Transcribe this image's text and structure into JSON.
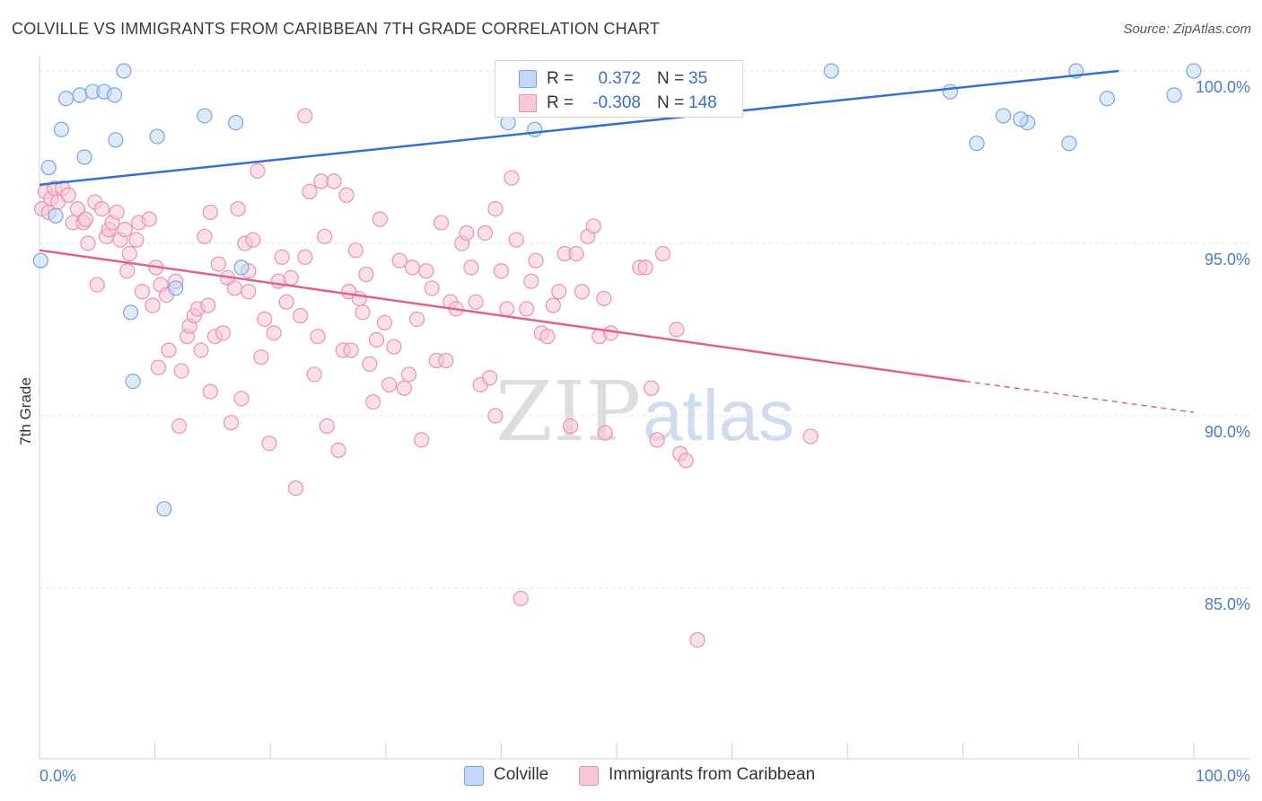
{
  "title": "COLVILLE VS IMMIGRANTS FROM CARIBBEAN 7TH GRADE CORRELATION CHART",
  "source": "Source: ZipAtlas.com",
  "watermark": {
    "zip": "ZIP",
    "atlas": "atlas"
  },
  "colors": {
    "blue_fill": "#c3d8f5",
    "blue_stroke": "#7aa4df",
    "blue_line": "#3271cf",
    "pink_fill": "#f8c7d7",
    "pink_stroke": "#e991b0",
    "pink_line": "#e0608e",
    "tick_text": "#4a7bc8"
  },
  "legend": {
    "rows": [
      {
        "r_label": "R =",
        "r_value": "0.372",
        "n_label": "N =",
        "n_value": "35"
      },
      {
        "r_label": "R =",
        "r_value": "-0.308",
        "n_label": "N =",
        "n_value": "148"
      }
    ],
    "bottom": [
      "Colville",
      "Immigrants from Caribbean"
    ]
  },
  "chart_data": {
    "type": "scatter",
    "title": "COLVILLE VS IMMIGRANTS FROM CARIBBEAN 7TH GRADE CORRELATION CHART",
    "xlabel": "",
    "ylabel": "7th Grade",
    "xlim": [
      0,
      100
    ],
    "ylim": [
      80.5,
      101
    ],
    "x_tick_labels": [
      "0.0%",
      "100.0%"
    ],
    "y_ticks": [
      85,
      90,
      95,
      100
    ],
    "y_tick_labels": [
      "85.0%",
      "90.0%",
      "95.0%",
      "100.0%"
    ],
    "grid": true,
    "legend_position": "top-center",
    "series": [
      {
        "name": "Colville",
        "points": [
          [
            0.1,
            94.5
          ],
          [
            0.8,
            97.2
          ],
          [
            1.4,
            95.8
          ],
          [
            1.9,
            98.3
          ],
          [
            2.3,
            99.2
          ],
          [
            3.5,
            99.3
          ],
          [
            3.9,
            97.5
          ],
          [
            4.6,
            99.4
          ],
          [
            5.6,
            99.4
          ],
          [
            6.5,
            99.3
          ],
          [
            6.6,
            98.0
          ],
          [
            7.3,
            100.0
          ],
          [
            7.9,
            93.0
          ],
          [
            8.1,
            91.0
          ],
          [
            10.2,
            98.1
          ],
          [
            10.8,
            87.3
          ],
          [
            11.8,
            93.7
          ],
          [
            14.3,
            98.7
          ],
          [
            17.0,
            98.5
          ],
          [
            17.5,
            94.3
          ],
          [
            40.6,
            98.5
          ],
          [
            42.9,
            98.3
          ],
          [
            55.0,
            100.0
          ],
          [
            56.0,
            100.0
          ],
          [
            68.6,
            100.0
          ],
          [
            78.9,
            99.4
          ],
          [
            81.2,
            97.9
          ],
          [
            85.6,
            98.5
          ],
          [
            89.8,
            100.0
          ],
          [
            100.0,
            100.0
          ],
          [
            98.3,
            99.3
          ],
          [
            92.5,
            99.2
          ],
          [
            83.5,
            98.7
          ],
          [
            85.0,
            98.6
          ],
          [
            89.2,
            97.9
          ]
        ]
      },
      {
        "name": "Immigrants from Caribbean",
        "points": [
          [
            0.2,
            96.0
          ],
          [
            0.5,
            96.5
          ],
          [
            0.8,
            95.9
          ],
          [
            1.0,
            96.3
          ],
          [
            1.3,
            96.6
          ],
          [
            1.6,
            96.2
          ],
          [
            2.0,
            96.6
          ],
          [
            2.5,
            96.4
          ],
          [
            2.9,
            95.6
          ],
          [
            3.3,
            96.0
          ],
          [
            3.8,
            95.6
          ],
          [
            4.0,
            95.7
          ],
          [
            4.2,
            95.0
          ],
          [
            4.8,
            96.2
          ],
          [
            5.0,
            93.8
          ],
          [
            5.4,
            96.0
          ],
          [
            5.8,
            95.2
          ],
          [
            6.0,
            95.4
          ],
          [
            6.3,
            95.6
          ],
          [
            6.7,
            95.9
          ],
          [
            7.0,
            95.1
          ],
          [
            7.4,
            95.4
          ],
          [
            7.8,
            94.7
          ],
          [
            7.6,
            94.2
          ],
          [
            8.4,
            95.1
          ],
          [
            8.6,
            95.6
          ],
          [
            8.9,
            93.6
          ],
          [
            9.5,
            95.7
          ],
          [
            9.8,
            93.2
          ],
          [
            10.1,
            94.3
          ],
          [
            10.3,
            91.4
          ],
          [
            10.5,
            93.8
          ],
          [
            11.0,
            93.5
          ],
          [
            11.2,
            91.9
          ],
          [
            11.8,
            93.9
          ],
          [
            12.1,
            89.7
          ],
          [
            12.3,
            91.3
          ],
          [
            12.8,
            92.3
          ],
          [
            13.0,
            92.6
          ],
          [
            13.4,
            92.9
          ],
          [
            13.7,
            93.1
          ],
          [
            14.0,
            91.9
          ],
          [
            14.3,
            95.2
          ],
          [
            14.6,
            93.2
          ],
          [
            14.8,
            90.7
          ],
          [
            15.2,
            92.3
          ],
          [
            15.5,
            94.4
          ],
          [
            15.9,
            92.4
          ],
          [
            16.3,
            94.0
          ],
          [
            16.6,
            89.8
          ],
          [
            16.9,
            93.7
          ],
          [
            17.2,
            96.0
          ],
          [
            17.5,
            90.5
          ],
          [
            17.8,
            95.0
          ],
          [
            18.1,
            94.2
          ],
          [
            18.5,
            95.1
          ],
          [
            18.9,
            97.1
          ],
          [
            19.2,
            91.7
          ],
          [
            19.5,
            92.8
          ],
          [
            19.9,
            89.2
          ],
          [
            20.3,
            92.4
          ],
          [
            20.7,
            93.9
          ],
          [
            21.0,
            94.6
          ],
          [
            21.4,
            93.3
          ],
          [
            21.8,
            94.0
          ],
          [
            22.2,
            87.9
          ],
          [
            22.6,
            92.9
          ],
          [
            23.0,
            94.6
          ],
          [
            23.4,
            96.5
          ],
          [
            23.8,
            91.2
          ],
          [
            24.1,
            92.3
          ],
          [
            24.4,
            96.8
          ],
          [
            24.7,
            95.2
          ],
          [
            24.9,
            89.7
          ],
          [
            25.5,
            96.8
          ],
          [
            25.9,
            89.0
          ],
          [
            26.3,
            91.9
          ],
          [
            26.6,
            96.4
          ],
          [
            26.8,
            93.6
          ],
          [
            27.0,
            91.9
          ],
          [
            27.4,
            94.8
          ],
          [
            27.7,
            93.4
          ],
          [
            28.0,
            93.0
          ],
          [
            28.3,
            94.1
          ],
          [
            28.6,
            91.5
          ],
          [
            28.9,
            90.4
          ],
          [
            29.2,
            92.2
          ],
          [
            29.5,
            95.7
          ],
          [
            29.9,
            92.7
          ],
          [
            30.3,
            90.9
          ],
          [
            30.7,
            92.0
          ],
          [
            31.2,
            94.5
          ],
          [
            31.6,
            90.8
          ],
          [
            32.0,
            91.2
          ],
          [
            32.3,
            94.3
          ],
          [
            32.7,
            92.8
          ],
          [
            33.1,
            89.3
          ],
          [
            33.5,
            94.2
          ],
          [
            34.0,
            93.7
          ],
          [
            34.4,
            91.6
          ],
          [
            34.8,
            95.6
          ],
          [
            35.2,
            91.6
          ],
          [
            35.6,
            93.3
          ],
          [
            36.1,
            93.1
          ],
          [
            36.6,
            95.0
          ],
          [
            37.0,
            95.3
          ],
          [
            37.4,
            94.3
          ],
          [
            37.8,
            93.3
          ],
          [
            38.2,
            90.9
          ],
          [
            38.6,
            95.3
          ],
          [
            39.0,
            91.1
          ],
          [
            39.5,
            90.0
          ],
          [
            40.0,
            94.2
          ],
          [
            40.5,
            93.1
          ],
          [
            40.9,
            96.9
          ],
          [
            41.3,
            95.1
          ],
          [
            41.7,
            84.7
          ],
          [
            42.2,
            93.1
          ],
          [
            42.6,
            93.9
          ],
          [
            43.0,
            94.5
          ],
          [
            43.5,
            92.4
          ],
          [
            44.0,
            92.3
          ],
          [
            44.5,
            93.2
          ],
          [
            45.0,
            93.6
          ],
          [
            45.5,
            94.7
          ],
          [
            46.0,
            89.7
          ],
          [
            46.5,
            94.7
          ],
          [
            47.0,
            93.6
          ],
          [
            47.5,
            95.2
          ],
          [
            48.0,
            95.5
          ],
          [
            48.5,
            92.3
          ],
          [
            49.0,
            89.5
          ],
          [
            49.5,
            92.4
          ],
          [
            52.0,
            94.3
          ],
          [
            52.5,
            94.3
          ],
          [
            53.0,
            90.8
          ],
          [
            53.5,
            89.3
          ],
          [
            54.0,
            94.7
          ],
          [
            55.2,
            92.5
          ],
          [
            55.5,
            88.9
          ],
          [
            56.0,
            88.7
          ],
          [
            57.0,
            83.5
          ],
          [
            66.8,
            89.4
          ],
          [
            48.9,
            93.4
          ],
          [
            39.5,
            96.0
          ],
          [
            23.0,
            98.7
          ],
          [
            14.8,
            95.9
          ],
          [
            18.1,
            93.6
          ]
        ]
      }
    ],
    "trend_lines": [
      {
        "series": "Colville",
        "from": [
          0,
          96.7
        ],
        "to": [
          93.5,
          100.0
        ],
        "dashed_to": null
      },
      {
        "series": "Immigrants from Caribbean",
        "from": [
          0,
          94.8
        ],
        "to": [
          80.2,
          91.0
        ],
        "dashed_to": [
          100,
          90.1
        ]
      }
    ]
  }
}
